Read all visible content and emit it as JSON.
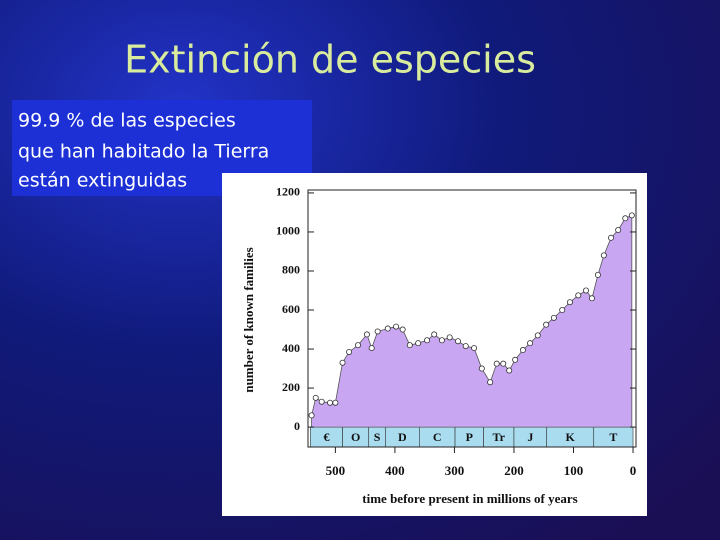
{
  "slide": {
    "title": "Extinción de especies",
    "text": [
      "99.9 % de las especies",
      "que han habitado la Tierra",
      "están extinguidas"
    ]
  },
  "chart_data": {
    "type": "area",
    "ylabel": "number of known families",
    "xlabel": "time before present in millions of years",
    "x": [
      540,
      533,
      523,
      509,
      500,
      488,
      477,
      462,
      447,
      439,
      429,
      412,
      398,
      387,
      375,
      361,
      346,
      334,
      321,
      308,
      294,
      281,
      267,
      254,
      240,
      229,
      218,
      208,
      198,
      185,
      173,
      160,
      146,
      133,
      119,
      106,
      92,
      79,
      69,
      59,
      49,
      37,
      25,
      13,
      2
    ],
    "values": [
      60,
      150,
      130,
      125,
      125,
      330,
      385,
      420,
      475,
      405,
      490,
      505,
      515,
      500,
      420,
      430,
      445,
      475,
      445,
      460,
      440,
      415,
      405,
      300,
      230,
      325,
      325,
      290,
      345,
      395,
      430,
      470,
      525,
      560,
      600,
      640,
      675,
      700,
      660,
      780,
      880,
      970,
      1010,
      1070,
      1085
    ],
    "color": "#c9a6f2",
    "xlim": [
      546,
      -5
    ],
    "xticks": [
      500,
      400,
      300,
      200,
      100,
      0
    ],
    "ylim": [
      -102,
      1215
    ],
    "yticks": [
      0,
      200,
      400,
      600,
      800,
      1000,
      1200
    ],
    "periods": [
      {
        "label": "€",
        "start": 542,
        "end": 488
      },
      {
        "label": "O",
        "start": 488,
        "end": 444
      },
      {
        "label": "S",
        "start": 444,
        "end": 416
      },
      {
        "label": "D",
        "start": 416,
        "end": 359
      },
      {
        "label": "C",
        "start": 359,
        "end": 299
      },
      {
        "label": "P",
        "start": 299,
        "end": 251
      },
      {
        "label": "Tr",
        "start": 251,
        "end": 200
      },
      {
        "label": "J",
        "start": 200,
        "end": 145
      },
      {
        "label": "K",
        "start": 145,
        "end": 66
      },
      {
        "label": "T",
        "start": 66,
        "end": 0
      }
    ],
    "period_color": "#a9dcef"
  }
}
